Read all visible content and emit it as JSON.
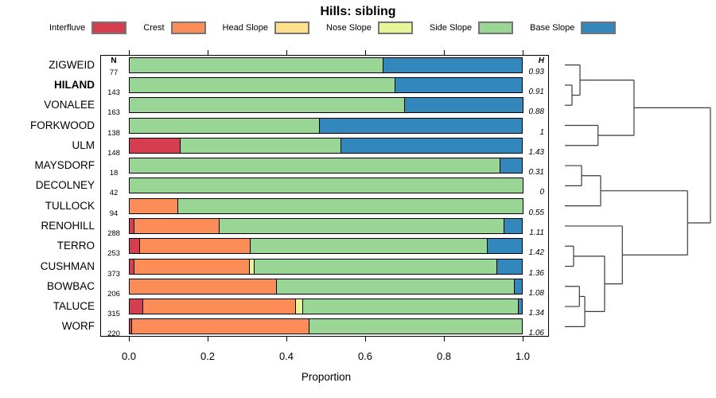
{
  "title": "Hills: sibling",
  "xlabel": "Proportion",
  "columns": {
    "n_header": "N",
    "h_header": "H"
  },
  "x_ticks": [
    "0.0",
    "0.2",
    "0.4",
    "0.6",
    "0.8",
    "1.0"
  ],
  "colors": {
    "interfluve": "#d53e4f",
    "crest": "#fc8d59",
    "head_slope": "#fee08b",
    "nose_slope": "#e6f598",
    "side_slope": "#99d594",
    "base_slope": "#3288bd"
  },
  "legend": [
    {
      "label": "Interfluve",
      "key": "interfluve"
    },
    {
      "label": "Crest",
      "key": "crest"
    },
    {
      "label": "Head Slope",
      "key": "head_slope"
    },
    {
      "label": "Nose Slope",
      "key": "nose_slope"
    },
    {
      "label": "Side Slope",
      "key": "side_slope"
    },
    {
      "label": "Base Slope",
      "key": "base_slope"
    }
  ],
  "chart_data": {
    "type": "bar",
    "stacked": true,
    "orientation": "horizontal",
    "title": "Hills: sibling",
    "xlabel": "Proportion",
    "xlim": [
      0,
      1
    ],
    "series_order": [
      "interfluve",
      "crest",
      "head_slope",
      "nose_slope",
      "side_slope",
      "base_slope"
    ],
    "bold_category": "HILAND",
    "rows": [
      {
        "name": "ZIGWEID",
        "n": 77,
        "h": "0.93",
        "segments": {
          "side_slope": 0.646,
          "base_slope": 0.354
        }
      },
      {
        "name": "HILAND",
        "n": 143,
        "h": "0.91",
        "segments": {
          "side_slope": 0.676,
          "base_slope": 0.324
        }
      },
      {
        "name": "VONALEE",
        "n": 163,
        "h": "0.88",
        "segments": {
          "side_slope": 0.7,
          "base_slope": 0.3
        }
      },
      {
        "name": "FORKWOOD",
        "n": 138,
        "h": "1",
        "segments": {
          "side_slope": 0.484,
          "base_slope": 0.516
        }
      },
      {
        "name": "ULM",
        "n": 148,
        "h": "1.43",
        "segments": {
          "interfluve": 0.131,
          "side_slope": 0.407,
          "base_slope": 0.462
        }
      },
      {
        "name": "MAYSDORF",
        "n": 18,
        "h": "0.31",
        "segments": {
          "side_slope": 0.942,
          "base_slope": 0.058
        }
      },
      {
        "name": "DECOLNEY",
        "n": 42,
        "h": "0",
        "segments": {
          "side_slope": 1.0
        }
      },
      {
        "name": "TULLOCK",
        "n": 94,
        "h": "0.55",
        "segments": {
          "crest": 0.125,
          "side_slope": 0.875
        }
      },
      {
        "name": "RENOHILL",
        "n": 288,
        "h": "1.11",
        "segments": {
          "interfluve": 0.013,
          "crest": 0.217,
          "side_slope": 0.722,
          "base_slope": 0.048
        }
      },
      {
        "name": "TERRO",
        "n": 253,
        "h": "1.42",
        "segments": {
          "interfluve": 0.028,
          "crest": 0.281,
          "side_slope": 0.602,
          "base_slope": 0.089
        }
      },
      {
        "name": "CUSHMAN",
        "n": 373,
        "h": "1.36",
        "segments": {
          "interfluve": 0.014,
          "crest": 0.293,
          "nose_slope": 0.012,
          "side_slope": 0.615,
          "base_slope": 0.066
        }
      },
      {
        "name": "BOWBAC",
        "n": 206,
        "h": "1.08",
        "segments": {
          "crest": 0.375,
          "side_slope": 0.603,
          "base_slope": 0.022
        }
      },
      {
        "name": "TALUCE",
        "n": 315,
        "h": "1.34",
        "segments": {
          "interfluve": 0.036,
          "crest": 0.388,
          "nose_slope": 0.018,
          "side_slope": 0.547,
          "base_slope": 0.011
        }
      },
      {
        "name": "WORF",
        "n": 220,
        "h": "1.06",
        "segments": {
          "interfluve": 0.008,
          "crest": 0.449,
          "side_slope": 0.543
        }
      }
    ],
    "dendrogram": {
      "leaf_order": [
        "ZIGWEID",
        "HILAND",
        "VONALEE",
        "FORKWOOD",
        "ULM",
        "MAYSDORF",
        "DECOLNEY",
        "TULLOCK",
        "RENOHILL",
        "TERRO",
        "CUSHMAN",
        "BOWBAC",
        "TALUCE",
        "WORF"
      ],
      "merges": [
        {
          "a": "HILAND",
          "b": "VONALEE",
          "height": 0.049
        },
        {
          "a": "ZIGWEID",
          "b": "#0",
          "height": 0.104
        },
        {
          "a": "FORKWOOD",
          "b": "ULM",
          "height": 0.228
        },
        {
          "a": "#1",
          "b": "#2",
          "height": 0.475
        },
        {
          "a": "MAYSDORF",
          "b": "DECOLNEY",
          "height": 0.115
        },
        {
          "a": "#4",
          "b": "TULLOCK",
          "height": 0.246
        },
        {
          "a": "TERRO",
          "b": "CUSHMAN",
          "height": 0.06
        },
        {
          "a": "BOWBAC",
          "b": "TALUCE",
          "height": 0.1
        },
        {
          "a": "#7",
          "b": "WORF",
          "height": 0.137
        },
        {
          "a": "#6",
          "b": "#8",
          "height": 0.273
        },
        {
          "a": "RENOHILL",
          "b": "#9",
          "height": 0.395
        },
        {
          "a": "#5",
          "b": "#10",
          "height": 0.843
        },
        {
          "a": "#3",
          "b": "#11",
          "height": 1.0
        }
      ]
    }
  }
}
